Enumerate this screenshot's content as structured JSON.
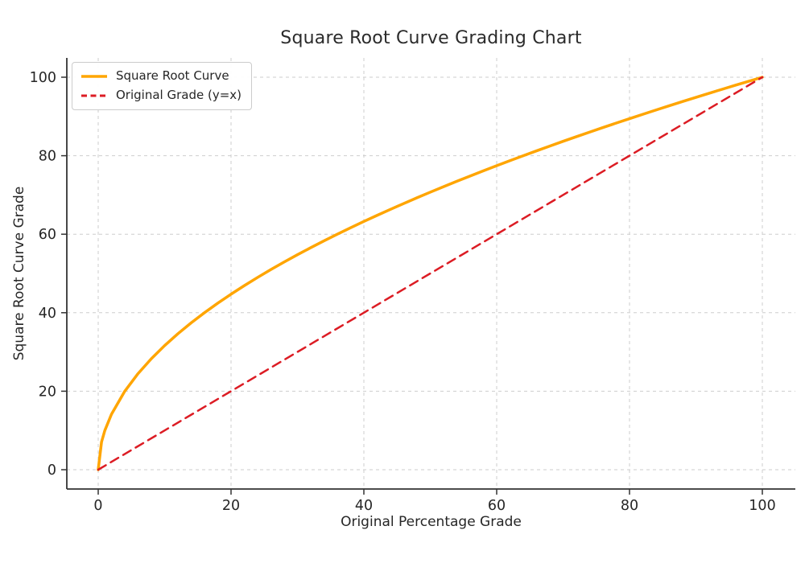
{
  "chart_data": {
    "type": "line",
    "title": "Square Root Curve Grading Chart",
    "xlabel": "Original Percentage Grade",
    "ylabel": "Square Root Curve Grade",
    "xlim": [
      0,
      100
    ],
    "ylim": [
      0,
      100
    ],
    "xticks": [
      0,
      20,
      40,
      60,
      80,
      100
    ],
    "yticks": [
      0,
      20,
      40,
      60,
      80,
      100
    ],
    "grid": true,
    "grid_style": "dashed",
    "legend_position": "upper left",
    "colors": {
      "grid": "#cdcdcd",
      "spine": "#333333",
      "text": "#262626",
      "background": "#ffffff"
    },
    "series": [
      {
        "name": "Square Root Curve",
        "formula": "y = 10 * sqrt(x)",
        "color": "#FFA500",
        "line_style": "solid",
        "line_width": 3.5,
        "x": [
          0,
          0.5,
          1,
          2,
          4,
          6,
          8,
          10,
          12,
          14,
          16,
          18,
          20,
          22,
          24,
          26,
          28,
          30,
          32,
          34,
          36,
          38,
          40,
          42,
          44,
          46,
          48,
          50,
          52,
          54,
          56,
          58,
          60,
          62,
          64,
          66,
          68,
          70,
          72,
          74,
          76,
          78,
          80,
          82,
          84,
          86,
          88,
          90,
          92,
          94,
          96,
          98,
          100
        ],
        "y": [
          0,
          7.07,
          10,
          14.14,
          20,
          24.49,
          28.28,
          31.62,
          34.64,
          37.42,
          40,
          42.43,
          44.72,
          46.9,
          48.99,
          50.99,
          52.92,
          54.77,
          56.57,
          58.31,
          60,
          61.64,
          63.25,
          64.81,
          66.33,
          67.82,
          69.28,
          70.71,
          72.11,
          73.48,
          74.83,
          76.16,
          77.46,
          78.74,
          80,
          81.24,
          82.46,
          83.67,
          84.85,
          86.02,
          87.18,
          88.32,
          89.44,
          90.55,
          91.65,
          92.74,
          93.81,
          94.87,
          95.92,
          96.95,
          97.98,
          98.99,
          100
        ]
      },
      {
        "name": "Original Grade (y=x)",
        "formula": "y = x",
        "color": "#DC1C24",
        "line_style": "dashed",
        "line_width": 2.5,
        "x": [
          0,
          100
        ],
        "y": [
          0,
          100
        ]
      }
    ]
  }
}
